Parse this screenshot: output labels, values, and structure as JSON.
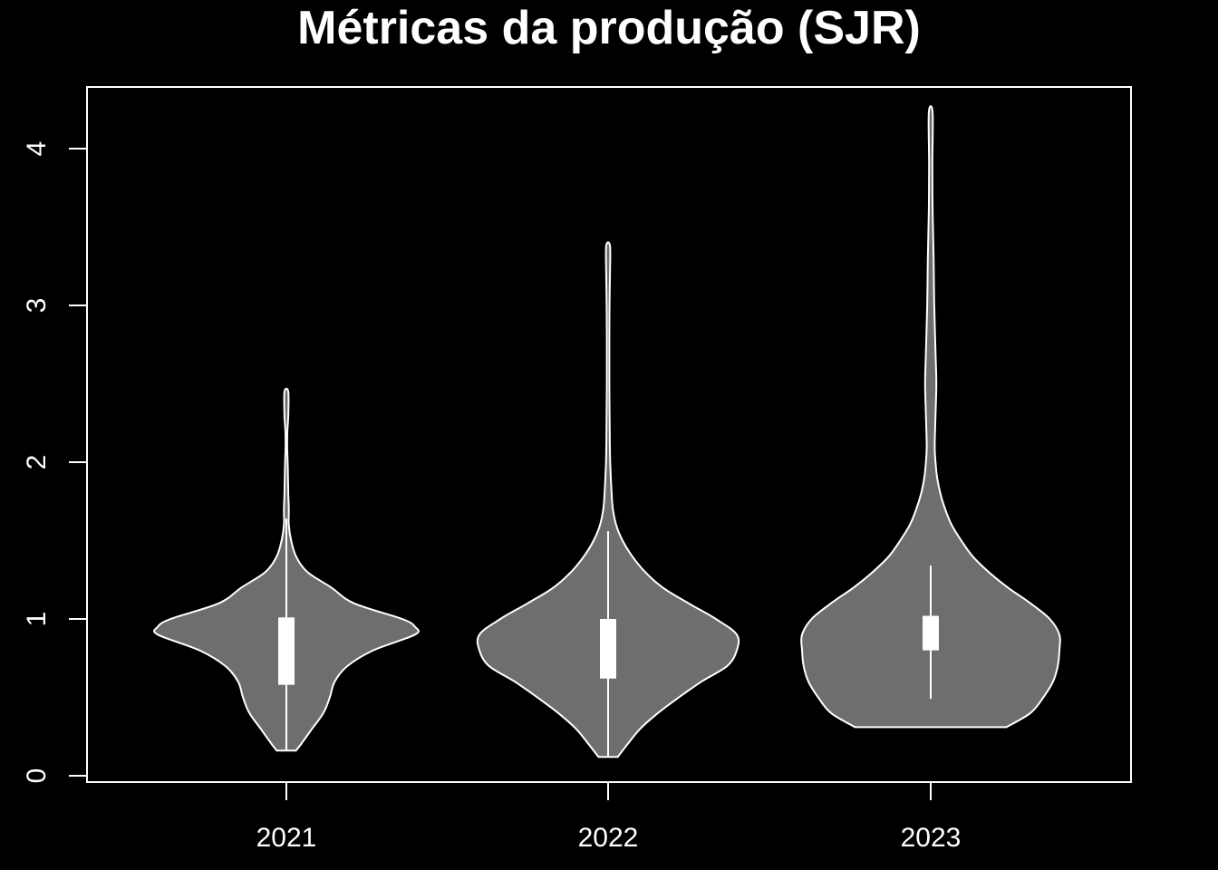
{
  "chart_data": {
    "type": "violin",
    "title": "Métricas da produção (SJR)",
    "xlabel": "",
    "ylabel": "",
    "categories": [
      "2021",
      "2022",
      "2023"
    ],
    "ylim": [
      -0.04,
      4.38
    ],
    "yticks": [
      0,
      1,
      2,
      3,
      4
    ],
    "colors": {
      "background": "#000000",
      "violin_fill": "#6e6e6e",
      "outline": "#ffffff",
      "box": "#ffffff"
    },
    "violins": [
      {
        "category": "2021",
        "min": 0.16,
        "max": 2.45,
        "whisker_low": 0.16,
        "whisker_high": 1.64,
        "q1": 0.58,
        "q3": 1.01,
        "density": [
          [
            0.16,
            0.06
          ],
          [
            0.2,
            0.09
          ],
          [
            0.3,
            0.16
          ],
          [
            0.4,
            0.23
          ],
          [
            0.5,
            0.27
          ],
          [
            0.6,
            0.3
          ],
          [
            0.7,
            0.38
          ],
          [
            0.8,
            0.54
          ],
          [
            0.9,
            0.8
          ],
          [
            0.95,
            0.8
          ],
          [
            1.0,
            0.72
          ],
          [
            1.1,
            0.42
          ],
          [
            1.2,
            0.28
          ],
          [
            1.3,
            0.13
          ],
          [
            1.4,
            0.06
          ],
          [
            1.5,
            0.03
          ],
          [
            1.6,
            0.015
          ],
          [
            1.7,
            0.015
          ],
          [
            1.8,
            0.012
          ],
          [
            1.9,
            0.01
          ],
          [
            2.0,
            0.008
          ],
          [
            2.1,
            0.005
          ],
          [
            2.2,
            0.006
          ],
          [
            2.3,
            0.012
          ],
          [
            2.45,
            0.012
          ]
        ]
      },
      {
        "category": "2022",
        "min": 0.12,
        "max": 3.38,
        "whisker_low": 0.12,
        "whisker_high": 1.56,
        "q1": 0.62,
        "q3": 1.0,
        "density": [
          [
            0.12,
            0.06
          ],
          [
            0.2,
            0.12
          ],
          [
            0.3,
            0.2
          ],
          [
            0.4,
            0.31
          ],
          [
            0.5,
            0.44
          ],
          [
            0.6,
            0.58
          ],
          [
            0.7,
            0.74
          ],
          [
            0.8,
            0.8
          ],
          [
            0.9,
            0.8
          ],
          [
            1.0,
            0.67
          ],
          [
            1.1,
            0.5
          ],
          [
            1.2,
            0.34
          ],
          [
            1.3,
            0.23
          ],
          [
            1.4,
            0.15
          ],
          [
            1.5,
            0.09
          ],
          [
            1.6,
            0.05
          ],
          [
            1.7,
            0.03
          ],
          [
            1.8,
            0.022
          ],
          [
            2.0,
            0.013
          ],
          [
            2.2,
            0.01
          ],
          [
            2.5,
            0.008
          ],
          [
            2.8,
            0.008
          ],
          [
            3.0,
            0.009
          ],
          [
            3.2,
            0.012
          ],
          [
            3.38,
            0.012
          ]
        ]
      },
      {
        "category": "2023",
        "min": 0.31,
        "max": 4.23,
        "whisker_low": 0.49,
        "whisker_high": 1.34,
        "q1": 0.8,
        "q3": 1.02,
        "density": [
          [
            0.31,
            0.47
          ],
          [
            0.4,
            0.62
          ],
          [
            0.5,
            0.7
          ],
          [
            0.6,
            0.76
          ],
          [
            0.7,
            0.79
          ],
          [
            0.8,
            0.8
          ],
          [
            0.9,
            0.8
          ],
          [
            1.0,
            0.74
          ],
          [
            1.1,
            0.62
          ],
          [
            1.2,
            0.48
          ],
          [
            1.3,
            0.36
          ],
          [
            1.4,
            0.26
          ],
          [
            1.5,
            0.19
          ],
          [
            1.6,
            0.13
          ],
          [
            1.7,
            0.09
          ],
          [
            1.8,
            0.06
          ],
          [
            1.9,
            0.04
          ],
          [
            2.0,
            0.03
          ],
          [
            2.1,
            0.025
          ],
          [
            2.3,
            0.03
          ],
          [
            2.5,
            0.035
          ],
          [
            2.7,
            0.03
          ],
          [
            3.0,
            0.022
          ],
          [
            3.3,
            0.018
          ],
          [
            3.6,
            0.012
          ],
          [
            3.9,
            0.01
          ],
          [
            4.23,
            0.012
          ]
        ]
      }
    ]
  }
}
